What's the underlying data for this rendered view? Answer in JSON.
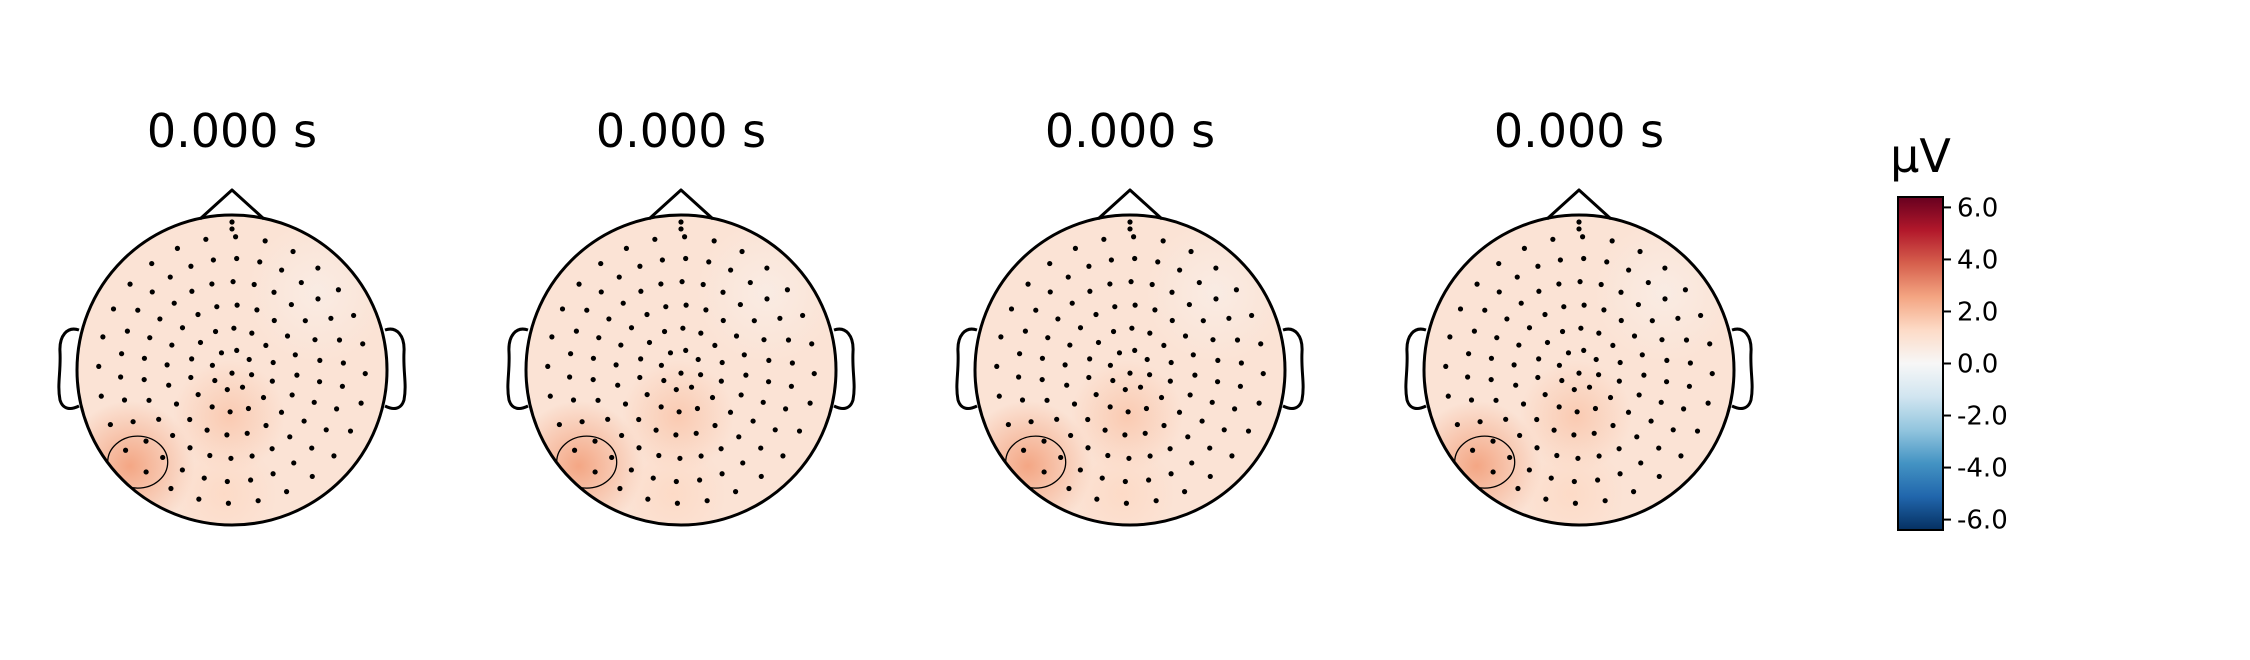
{
  "chart_data": {
    "type": "heatmap",
    "subtype": "eeg-topomap",
    "maps": [
      {
        "title": "0.000 s"
      },
      {
        "title": "0.000 s"
      },
      {
        "title": "0.000 s"
      },
      {
        "title": "0.000 s"
      }
    ],
    "colorbar": {
      "unit": "μV",
      "vmin": -6.4,
      "vmax": 6.4,
      "ticks": [
        6.0,
        4.0,
        2.0,
        0.0,
        -2.0,
        -4.0,
        -6.0
      ],
      "tick_labels": [
        "6.0",
        "4.0",
        "2.0",
        "0.0",
        "-2.0",
        "-4.0",
        "-6.0"
      ],
      "colormap": "RdBu_r",
      "colors": [
        "#053061",
        "#2166ac",
        "#4393c3",
        "#92c5de",
        "#d1e5f0",
        "#f7f7f7",
        "#fddbc7",
        "#f4a582",
        "#d6604d",
        "#b2182b",
        "#67001f"
      ]
    },
    "field_hotspots": [
      {
        "region": "left-posterior",
        "value": 2.6
      },
      {
        "region": "midline-parietal",
        "value": 1.7
      },
      {
        "region": "occipital",
        "value": 1.3
      },
      {
        "region": "left-frontal",
        "value": 0.9
      },
      {
        "region": "right-frontal",
        "value": 0.5
      }
    ],
    "baseline_value": 0.9,
    "colors": {
      "outline": "#000000",
      "sensor": "#000000"
    }
  }
}
